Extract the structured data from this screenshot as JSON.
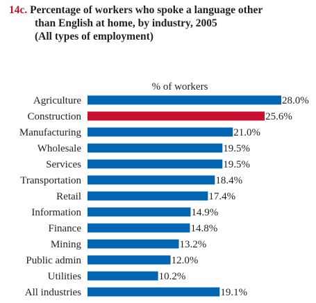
{
  "title": {
    "number": "14c.",
    "line1": "Percentage of workers who spoke a language other",
    "line2": "than English at home, by industry, 2005",
    "line3": "(All types of employment)"
  },
  "colors": {
    "bar": "#0065b3",
    "highlight": "#c8102e",
    "text": "#231f20"
  },
  "chart_data": {
    "type": "bar",
    "orientation": "horizontal",
    "xlabel": "% of workers",
    "categories": [
      "Agriculture",
      "Construction",
      "Manufacturing",
      "Wholesale",
      "Services",
      "Transportation",
      "Retail",
      "Information",
      "Finance",
      "Mining",
      "Public admin",
      "Utilities",
      "All industries"
    ],
    "values": [
      28.0,
      25.6,
      21.0,
      19.5,
      19.5,
      18.4,
      17.4,
      14.9,
      14.8,
      13.2,
      12.0,
      10.2,
      19.1
    ],
    "value_labels": [
      "28.0%",
      "25.6%",
      "21.0%",
      "19.5%",
      "19.5%",
      "18.4%",
      "17.4%",
      "14.9%",
      "14.8%",
      "13.2%",
      "12.0%",
      "10.2%",
      "19.1%"
    ],
    "highlighted_category": "Construction",
    "xlim": [
      0,
      28
    ],
    "grid": false,
    "legend": "none"
  }
}
